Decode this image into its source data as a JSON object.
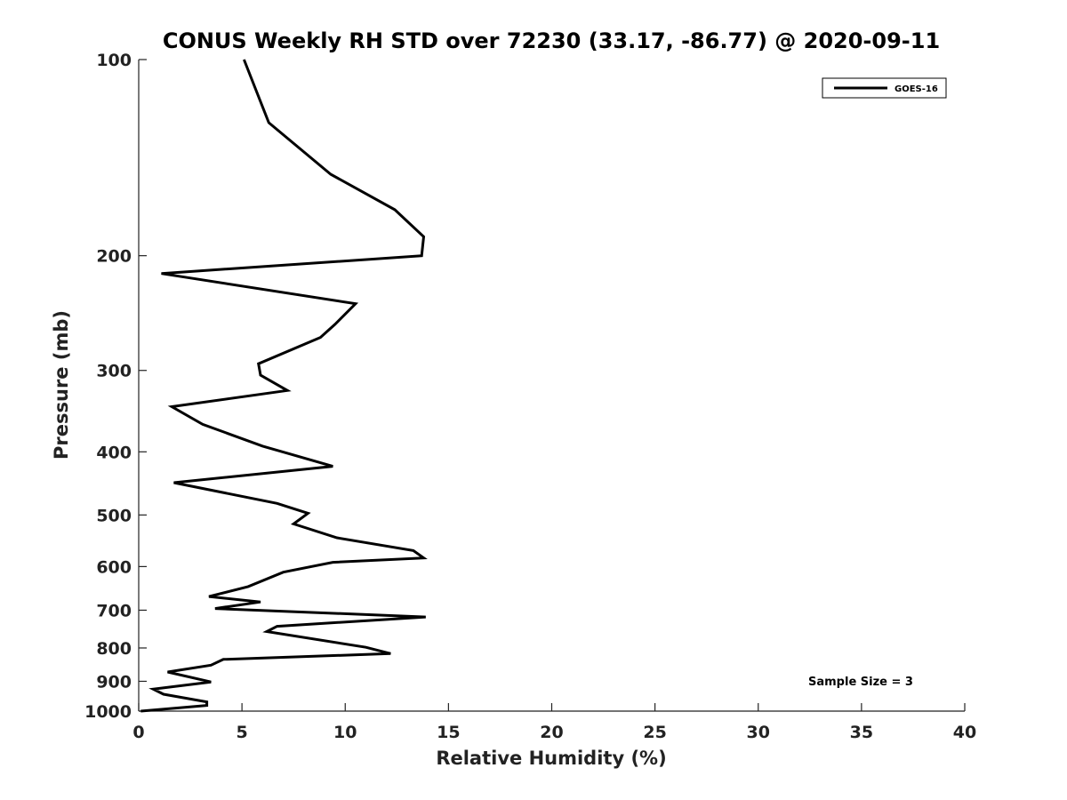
{
  "chart_data": {
    "type": "line",
    "title": "CONUS Weekly RH STD over 72230 (33.17, -86.77) @ 2020-09-11",
    "xlabel": "Relative Humidity (%)",
    "ylabel": "Pressure (mb)",
    "xlim": [
      0,
      40
    ],
    "ylim": [
      100,
      1000
    ],
    "y_scale": "log",
    "y_reversed": true,
    "x_ticks": [
      0,
      5,
      10,
      15,
      20,
      25,
      30,
      35,
      40
    ],
    "y_ticks": [
      100,
      200,
      300,
      400,
      500,
      600,
      700,
      800,
      900,
      1000
    ],
    "grid": false,
    "legend_position": "top-right",
    "annotation": "Sample Size = 3",
    "series": [
      {
        "name": "GOES-16",
        "color": "#000000",
        "x": [
          5.1,
          6.3,
          9.3,
          12.4,
          13.8,
          13.7,
          1.1,
          10.5,
          9.5,
          8.8,
          5.8,
          5.9,
          7.2,
          1.6,
          3.1,
          6.0,
          9.4,
          1.7,
          6.7,
          8.2,
          7.5,
          9.6,
          13.3,
          13.8,
          9.4,
          7.0,
          5.3,
          3.4,
          5.9,
          3.7,
          13.9,
          6.7,
          6.2,
          11.0,
          12.2,
          4.1,
          3.5,
          1.4,
          3.5,
          0.7,
          1.2,
          3.3,
          3.3,
          0.1
        ],
        "y": [
          100,
          125,
          150,
          170,
          187,
          200,
          213,
          237,
          255,
          267,
          293,
          305,
          322,
          341,
          363,
          392,
          421,
          446,
          480,
          497,
          516,
          542,
          567,
          582,
          591,
          612,
          644,
          667,
          680,
          696,
          717,
          741,
          755,
          798,
          816,
          833,
          850,
          871,
          902,
          925,
          942,
          968,
          980,
          1000
        ]
      }
    ]
  }
}
